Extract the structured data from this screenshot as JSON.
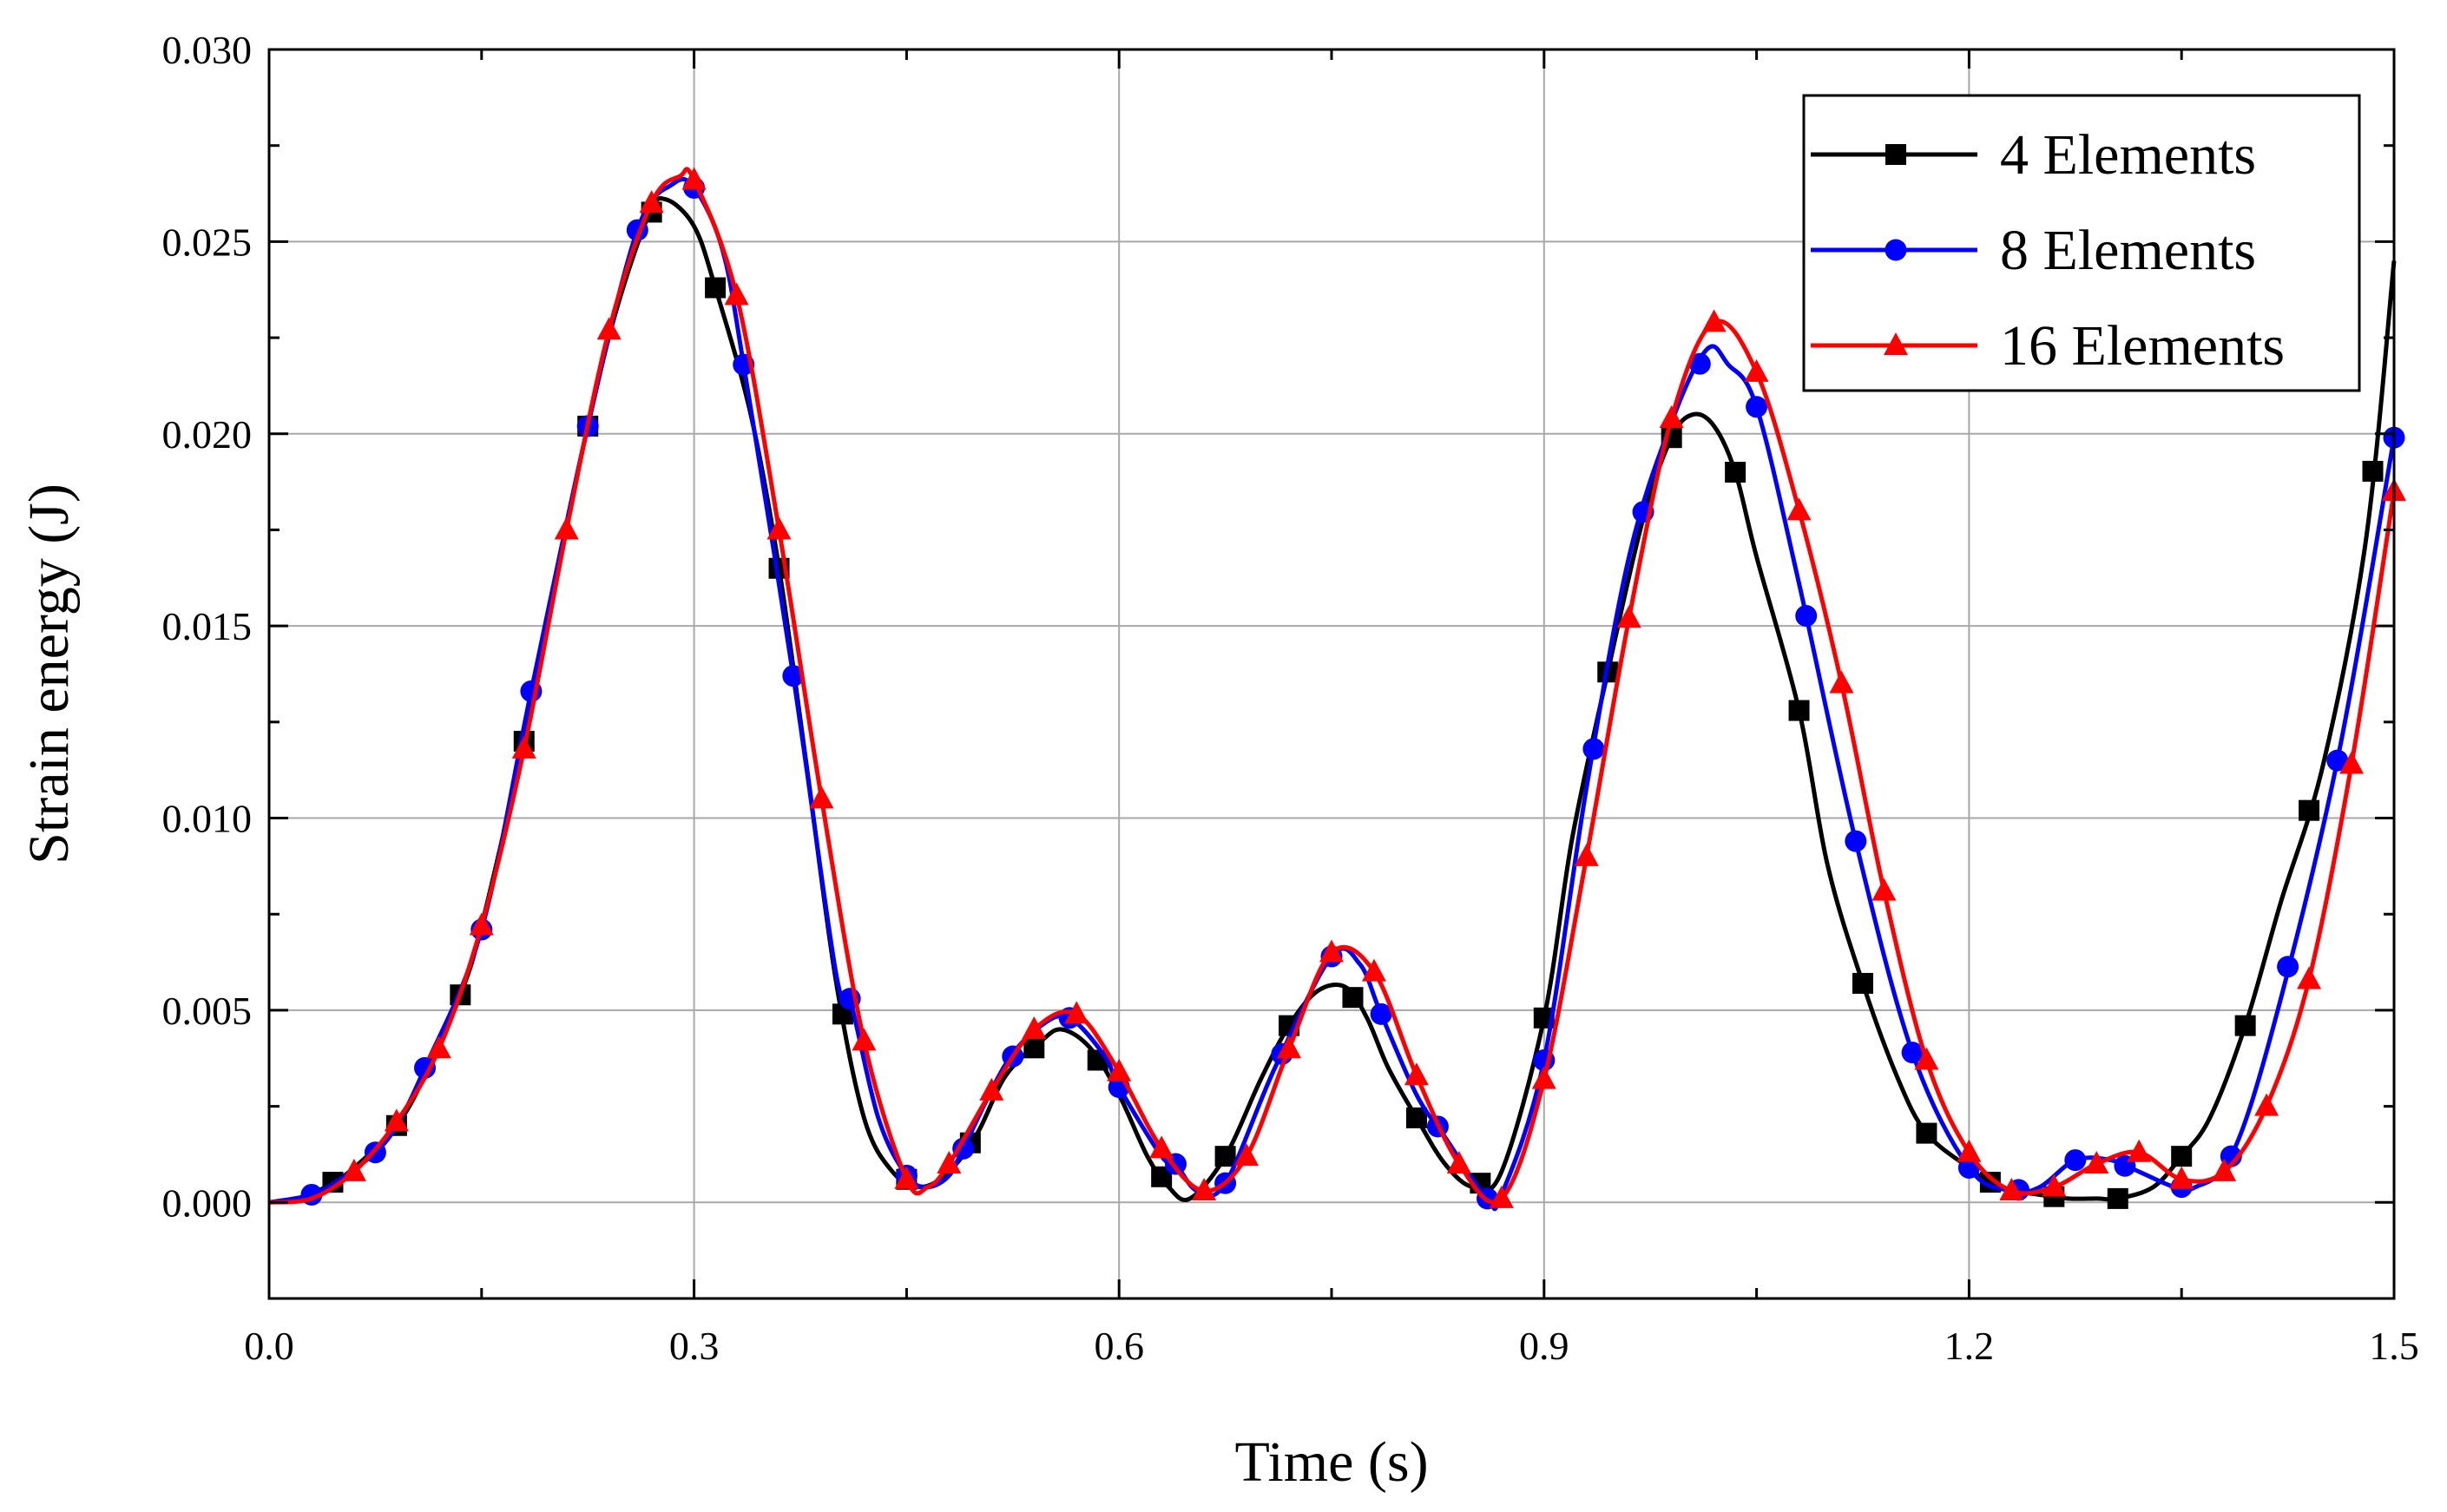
{
  "chart_data": {
    "type": "line",
    "title": "",
    "xlabel": "Time (s)",
    "ylabel": "Strain energy (J)",
    "xlim": [
      0.0,
      1.5
    ],
    "ylim": [
      -0.0025,
      0.03
    ],
    "xticks": [
      0.0,
      0.3,
      0.6,
      0.9,
      1.2,
      1.5
    ],
    "xtick_labels": [
      "0.0",
      "0.3",
      "0.6",
      "0.9",
      "1.2",
      "1.5"
    ],
    "yticks": [
      0.0,
      0.005,
      0.01,
      0.015,
      0.02,
      0.025,
      0.03
    ],
    "ytick_labels": [
      "0.000",
      "0.005",
      "0.010",
      "0.015",
      "0.020",
      "0.025",
      "0.030"
    ],
    "grid": true,
    "legend_position": "top-right",
    "series": [
      {
        "name": "4 Elements",
        "color": "#000000",
        "marker": "square",
        "curve": [
          [
            0,
            0
          ],
          [
            0.02,
            0.0001
          ],
          [
            0.04,
            0.0004
          ],
          [
            0.06,
            0.0009
          ],
          [
            0.09,
            0.002
          ],
          [
            0.11,
            0.0033
          ],
          [
            0.135,
            0.0054
          ],
          [
            0.15,
            0.0072
          ],
          [
            0.18,
            0.012
          ],
          [
            0.2,
            0.0158
          ],
          [
            0.225,
            0.0202
          ],
          [
            0.245,
            0.0232
          ],
          [
            0.268,
            0.0257
          ],
          [
            0.28,
            0.0261
          ],
          [
            0.3,
            0.0254
          ],
          [
            0.315,
            0.0238
          ],
          [
            0.34,
            0.0205
          ],
          [
            0.36,
            0.0165
          ],
          [
            0.38,
            0.0112
          ],
          [
            0.4,
            0.0058
          ],
          [
            0.42,
            0.0022
          ],
          [
            0.44,
            0.0008
          ],
          [
            0.46,
            0.0004
          ],
          [
            0.48,
            0.0008
          ],
          [
            0.5,
            0.0018
          ],
          [
            0.52,
            0.0033
          ],
          [
            0.545,
            0.0042
          ],
          [
            0.56,
            0.0045
          ],
          [
            0.58,
            0.004
          ],
          [
            0.6,
            0.0028
          ],
          [
            0.62,
            0.0012
          ],
          [
            0.635,
            0.0004
          ],
          [
            0.65,
            0.0001
          ],
          [
            0.675,
            0.0012
          ],
          [
            0.7,
            0.0032
          ],
          [
            0.72,
            0.0046
          ],
          [
            0.74,
            0.0055
          ],
          [
            0.76,
            0.0056
          ],
          [
            0.775,
            0.0048
          ],
          [
            0.79,
            0.0035
          ],
          [
            0.81,
            0.0022
          ],
          [
            0.83,
            0.001
          ],
          [
            0.85,
            0.0004
          ],
          [
            0.87,
            0.0008
          ],
          [
            0.9,
            0.0048
          ],
          [
            0.92,
            0.0095
          ],
          [
            0.945,
            0.0138
          ],
          [
            0.97,
            0.0178
          ],
          [
            0.99,
            0.0199
          ],
          [
            1.005,
            0.0205
          ],
          [
            1.02,
            0.0202
          ],
          [
            1.035,
            0.019
          ],
          [
            1.05,
            0.0168
          ],
          [
            1.08,
            0.0128
          ],
          [
            1.1,
            0.0088
          ],
          [
            1.125,
            0.0057
          ],
          [
            1.15,
            0.0032
          ],
          [
            1.17,
            0.0018
          ],
          [
            1.2,
            0.0009
          ],
          [
            1.22,
            0.0004
          ],
          [
            1.25,
            0.0002
          ],
          [
            1.27,
            0.0001
          ],
          [
            1.29,
            0.0001
          ],
          [
            1.305,
            0.0001
          ],
          [
            1.33,
            0.0004
          ],
          [
            1.35,
            0.0012
          ],
          [
            1.37,
            0.0022
          ],
          [
            1.395,
            0.0046
          ],
          [
            1.42,
            0.0078
          ],
          [
            1.45,
            0.0114
          ],
          [
            1.48,
            0.0172
          ],
          [
            1.5,
            0.0245
          ]
        ],
        "markers_x": [
          0.045,
          0.09,
          0.135,
          0.18,
          0.225,
          0.27,
          0.315,
          0.36,
          0.405,
          0.45,
          0.495,
          0.54,
          0.585,
          0.63,
          0.675,
          0.72,
          0.765,
          0.81,
          0.855,
          0.9,
          0.945,
          0.99,
          1.035,
          1.08,
          1.125,
          1.17,
          1.215,
          1.26,
          1.305,
          1.35,
          1.395,
          1.44,
          1.485
        ]
      },
      {
        "name": "8 Elements",
        "color": "#0000ff",
        "marker": "circle",
        "curve": [
          [
            0,
            0
          ],
          [
            0.03,
            0.0002
          ],
          [
            0.05,
            0.0006
          ],
          [
            0.075,
            0.0013
          ],
          [
            0.09,
            0.002
          ],
          [
            0.11,
            0.0035
          ],
          [
            0.15,
            0.0071
          ],
          [
            0.185,
            0.0133
          ],
          [
            0.225,
            0.0202
          ],
          [
            0.26,
            0.0253
          ],
          [
            0.285,
            0.0265
          ],
          [
            0.3,
            0.0264
          ],
          [
            0.32,
            0.0248
          ],
          [
            0.335,
            0.0218
          ],
          [
            0.37,
            0.0137
          ],
          [
            0.4,
            0.006
          ],
          [
            0.41,
            0.0053
          ],
          [
            0.43,
            0.0022
          ],
          [
            0.45,
            0.0007
          ],
          [
            0.465,
            0.0004
          ],
          [
            0.48,
            0.0007
          ],
          [
            0.49,
            0.0014
          ],
          [
            0.52,
            0.0036
          ],
          [
            0.545,
            0.0046
          ],
          [
            0.565,
            0.0048
          ],
          [
            0.59,
            0.0038
          ],
          [
            0.6,
            0.003
          ],
          [
            0.63,
            0.0012
          ],
          [
            0.64,
            0.001
          ],
          [
            0.655,
            0.0003
          ],
          [
            0.675,
            0.0005
          ],
          [
            0.71,
            0.0035
          ],
          [
            0.75,
            0.0064
          ],
          [
            0.77,
            0.0062
          ],
          [
            0.785,
            0.0049
          ],
          [
            0.81,
            0.0028
          ],
          [
            0.83,
            0.0017
          ],
          [
            0.86,
            0.0001
          ],
          [
            0.87,
            0.0002
          ],
          [
            0.9,
            0.0037
          ],
          [
            0.93,
            0.0108
          ],
          [
            0.96,
            0.0168
          ],
          [
            0.99,
            0.0203
          ],
          [
            1.015,
            0.0222
          ],
          [
            1.03,
            0.0218
          ],
          [
            1.05,
            0.0207
          ],
          [
            1.08,
            0.0161
          ],
          [
            1.12,
            0.0094
          ],
          [
            1.16,
            0.0039
          ],
          [
            1.2,
            0.0009
          ],
          [
            1.23,
            0.0003
          ],
          [
            1.25,
            0.0004
          ],
          [
            1.275,
            0.0011
          ],
          [
            1.3,
            0.0011
          ],
          [
            1.32,
            0.0008
          ],
          [
            1.345,
            0.0004
          ],
          [
            1.36,
            0.0004
          ],
          [
            1.385,
            0.0012
          ],
          [
            1.415,
            0.0046
          ],
          [
            1.46,
            0.0115
          ],
          [
            1.5,
            0.0199
          ]
        ],
        "markers_x": [
          0.03,
          0.075,
          0.11,
          0.15,
          0.185,
          0.225,
          0.26,
          0.3,
          0.335,
          0.37,
          0.41,
          0.45,
          0.49,
          0.525,
          0.565,
          0.6,
          0.64,
          0.675,
          0.715,
          0.75,
          0.785,
          0.825,
          0.86,
          0.9,
          0.935,
          0.97,
          1.01,
          1.05,
          1.085,
          1.12,
          1.16,
          1.2,
          1.235,
          1.275,
          1.31,
          1.35,
          1.385,
          1.425,
          1.46,
          1.5
        ]
      },
      {
        "name": "16 Elements",
        "color": "#ff0000",
        "marker": "triangle",
        "curve": [
          [
            0,
            0
          ],
          [
            0.03,
            0.0001
          ],
          [
            0.06,
            0.0008
          ],
          [
            0.09,
            0.0021
          ],
          [
            0.12,
            0.004
          ],
          [
            0.15,
            0.0072
          ],
          [
            0.18,
            0.0118
          ],
          [
            0.21,
            0.0175
          ],
          [
            0.24,
            0.0227
          ],
          [
            0.27,
            0.026
          ],
          [
            0.29,
            0.0267
          ],
          [
            0.3,
            0.0266
          ],
          [
            0.33,
            0.0236
          ],
          [
            0.36,
            0.0175
          ],
          [
            0.39,
            0.0105
          ],
          [
            0.42,
            0.0042
          ],
          [
            0.45,
            0.0006
          ],
          [
            0.465,
            0.0004
          ],
          [
            0.48,
            0.001
          ],
          [
            0.51,
            0.0029
          ],
          [
            0.54,
            0.0045
          ],
          [
            0.57,
            0.0049
          ],
          [
            0.6,
            0.0034
          ],
          [
            0.63,
            0.0014
          ],
          [
            0.66,
            0.0003
          ],
          [
            0.69,
            0.0012
          ],
          [
            0.72,
            0.004
          ],
          [
            0.75,
            0.0065
          ],
          [
            0.78,
            0.006
          ],
          [
            0.81,
            0.0033
          ],
          [
            0.84,
            0.001
          ],
          [
            0.87,
            0.0001
          ],
          [
            0.9,
            0.0032
          ],
          [
            0.93,
            0.009
          ],
          [
            0.96,
            0.0152
          ],
          [
            0.99,
            0.0204
          ],
          [
            1.02,
            0.0229
          ],
          [
            1.05,
            0.0216
          ],
          [
            1.08,
            0.018
          ],
          [
            1.11,
            0.0135
          ],
          [
            1.14,
            0.0081
          ],
          [
            1.17,
            0.0037
          ],
          [
            1.2,
            0.0013
          ],
          [
            1.23,
            0.0003
          ],
          [
            1.26,
            0.0004
          ],
          [
            1.29,
            0.001
          ],
          [
            1.32,
            0.0013
          ],
          [
            1.35,
            0.0006
          ],
          [
            1.38,
            0.0008
          ],
          [
            1.41,
            0.0025
          ],
          [
            1.44,
            0.0058
          ],
          [
            1.47,
            0.0114
          ],
          [
            1.5,
            0.0185
          ]
        ],
        "markers_x": [
          0.06,
          0.09,
          0.12,
          0.15,
          0.18,
          0.21,
          0.24,
          0.27,
          0.3,
          0.33,
          0.36,
          0.39,
          0.42,
          0.45,
          0.48,
          0.51,
          0.54,
          0.57,
          0.6,
          0.63,
          0.66,
          0.69,
          0.72,
          0.75,
          0.78,
          0.81,
          0.84,
          0.87,
          0.9,
          0.93,
          0.96,
          0.99,
          1.02,
          1.05,
          1.08,
          1.11,
          1.14,
          1.17,
          1.2,
          1.23,
          1.26,
          1.29,
          1.32,
          1.35,
          1.38,
          1.41,
          1.44,
          1.47,
          1.5
        ]
      }
    ]
  }
}
